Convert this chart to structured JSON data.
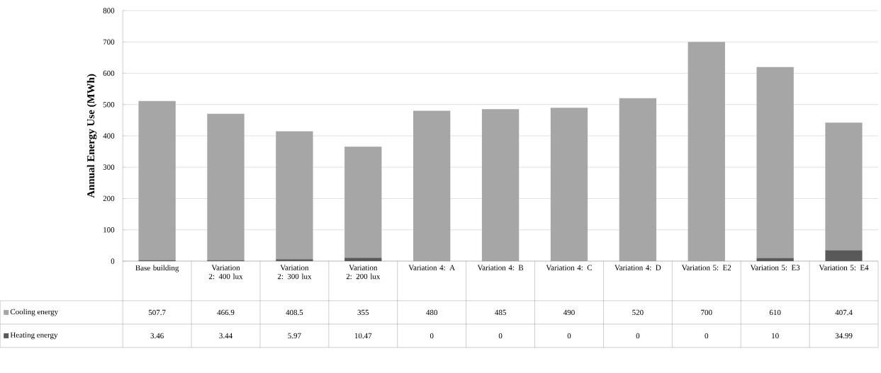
{
  "chart_data": {
    "type": "bar",
    "stacked": true,
    "ylabel": "Annual Energy Use (MWh)",
    "categories": [
      "Base building",
      "Variation 2: 400 lux",
      "Variation 2: 300 lux",
      "Variation 2: 200 lux",
      "Variation 4: A",
      "Variation 4: B",
      "Variation 4: C",
      "Variation 4: D",
      "Variation 5: E2",
      "Variation 5: E3",
      "Variation 5: E4"
    ],
    "series": [
      {
        "name": "Heating energy",
        "color": "#595959",
        "values": [
          3.46,
          3.44,
          5.97,
          10.47,
          0,
          0,
          0,
          0,
          0,
          10,
          34.99
        ]
      },
      {
        "name": "Cooling energy",
        "color": "#a6a6a6",
        "values": [
          507.7,
          466.9,
          408.5,
          355,
          480,
          485,
          490,
          520,
          700,
          610,
          407.4
        ]
      }
    ],
    "ylim": [
      0,
      800
    ],
    "yticks": [
      0,
      100,
      200,
      300,
      400,
      500,
      600,
      700,
      800
    ],
    "grid": "y",
    "legend": "bottom",
    "data_labels": true
  }
}
